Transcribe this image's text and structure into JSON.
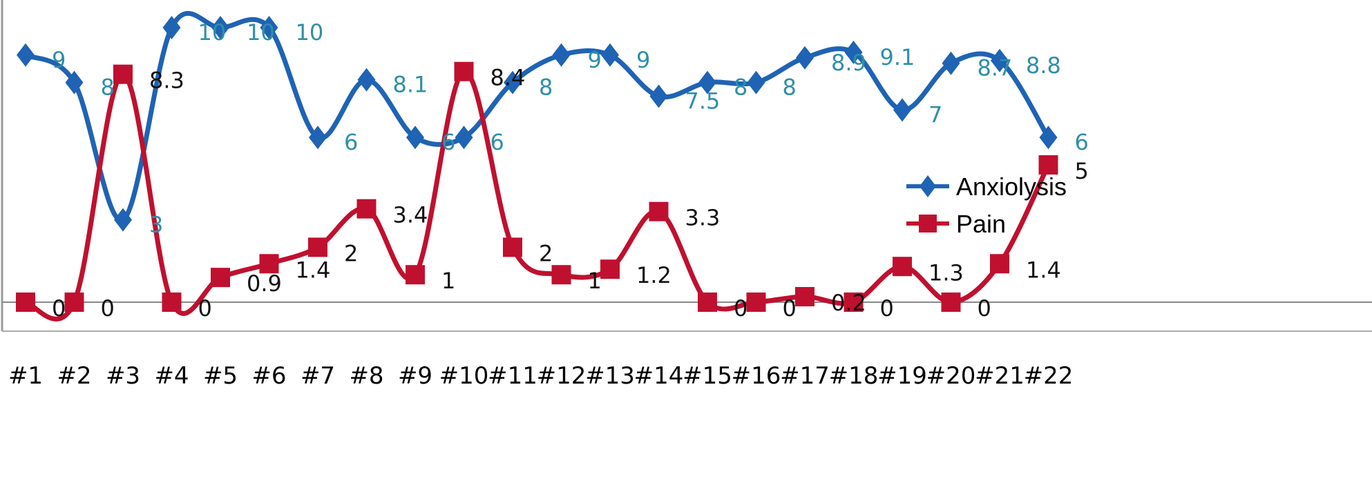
{
  "chart_data": {
    "type": "line",
    "categories": [
      "#1",
      "#2",
      "#3",
      "#4",
      "#5",
      "#6",
      "#7",
      "#8",
      "#9",
      "#10",
      "#11",
      "#12",
      "#13",
      "#14",
      "#15",
      "#16",
      "#17",
      "#18",
      "#19",
      "#20",
      "#21",
      "#22"
    ],
    "series": [
      {
        "name": "Anxiolysis",
        "color": "#1f63b4",
        "marker": "diamond",
        "values": [
          9,
          8,
          3,
          10,
          10,
          10,
          6,
          8.1,
          6,
          6,
          8,
          9,
          9,
          7.5,
          8,
          8,
          8.9,
          9.1,
          7,
          8.7,
          8.8,
          6
        ]
      },
      {
        "name": "Pain",
        "color": "#c0102f",
        "marker": "square",
        "values": [
          0,
          0,
          8.3,
          0,
          0.9,
          1.4,
          2,
          3.4,
          1,
          8.4,
          2,
          1,
          1.2,
          3.3,
          0,
          0,
          0.2,
          0,
          1.3,
          0,
          1.4,
          5
        ]
      }
    ],
    "ylim": [
      0,
      10
    ],
    "smoothed": true,
    "data_labels": true,
    "legend": "right",
    "grid": false
  }
}
